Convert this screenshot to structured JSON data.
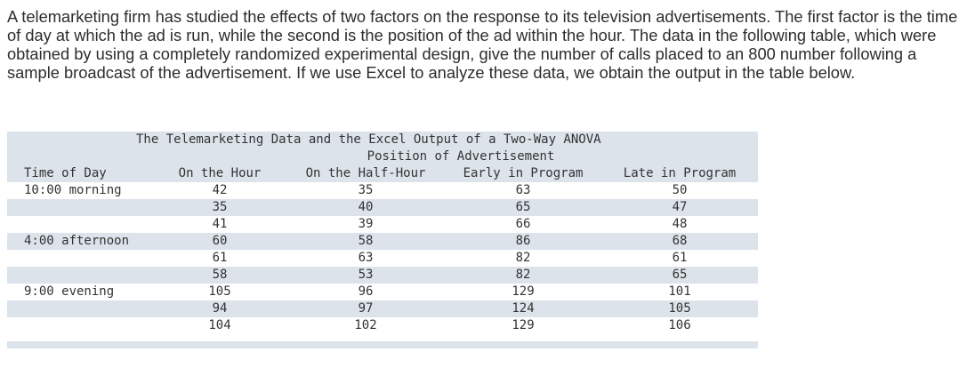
{
  "problem_text": "A telemarketing firm has studied the effects of two factors on the response to its television advertisements. The first factor is the time of day at which the ad is run, while the second is the position of the ad within the hour. The data in the following table, which were obtained by using a completely randomized experimental design, give the number of calls placed to an 800 number following a sample broadcast of the advertisement. If we use Excel to analyze these data, we obtain the output in the table below.",
  "table": {
    "title": "The Telemarketing Data and the Excel Output of a Two-Way ANOVA",
    "subheader": "Position of Advertisement",
    "row_header": "Time of Day",
    "columns": [
      "On the Hour",
      "On the Half-Hour",
      "Early in Program",
      "Late in Program"
    ],
    "rows": [
      {
        "label": "10:00 morning",
        "values": [
          "42",
          "35",
          "63",
          "50"
        ]
      },
      {
        "label": "",
        "values": [
          "35",
          "40",
          "65",
          "47"
        ]
      },
      {
        "label": "",
        "values": [
          "41",
          "39",
          "66",
          "48"
        ]
      },
      {
        "label": "4:00 afternoon",
        "values": [
          "60",
          "58",
          "86",
          "68"
        ]
      },
      {
        "label": "",
        "values": [
          "61",
          "63",
          "82",
          "61"
        ]
      },
      {
        "label": "",
        "values": [
          "58",
          "53",
          "82",
          "65"
        ]
      },
      {
        "label": "9:00 evening",
        "values": [
          "105",
          "96",
          "129",
          "101"
        ]
      },
      {
        "label": "",
        "values": [
          "94",
          "97",
          "124",
          "105"
        ]
      },
      {
        "label": "",
        "values": [
          "104",
          "102",
          "129",
          "106"
        ]
      }
    ]
  }
}
